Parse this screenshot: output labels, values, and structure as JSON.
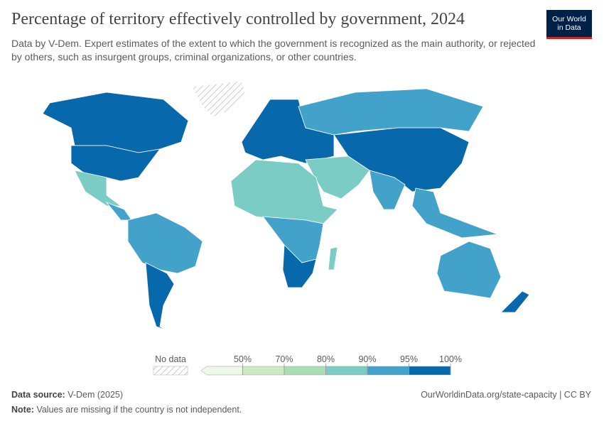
{
  "header": {
    "title": "Percentage of territory effectively controlled by government, 2024",
    "subtitle": "Data by V-Dem. Expert estimates of the extent to which the government is recognized as the main authority, or rejected by others, such as insurgent groups, criminal organizations, or other countries.",
    "logo": [
      "Our World",
      "in Data"
    ]
  },
  "legend": {
    "no_data": "No data",
    "ticks": [
      {
        "value": 50,
        "label": "50%"
      },
      {
        "value": 70,
        "label": "70%"
      },
      {
        "value": 80,
        "label": "80%"
      },
      {
        "value": 90,
        "label": "90%"
      },
      {
        "value": 95,
        "label": "95%"
      },
      {
        "value": 100,
        "label": "100%"
      }
    ],
    "colors": [
      "#eef8e8",
      "#ccebc5",
      "#a8ddb5",
      "#7bccc4",
      "#43a2ca",
      "#0868ac"
    ]
  },
  "footer": {
    "source_label": "Data source:",
    "source": "V-Dem (2025)",
    "url": "OurWorldinData.org/state-capacity | CC BY",
    "note_label": "Note:",
    "note": "Values are missing if the country is not independent."
  }
}
